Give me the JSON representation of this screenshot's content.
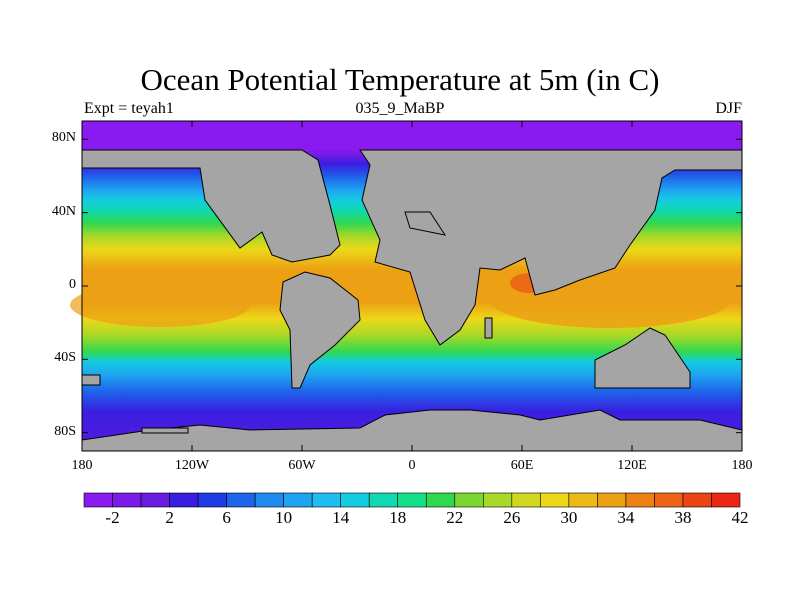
{
  "title": "Ocean Potential Temperature at 5m (in C)",
  "subtitle_left": "Expt = teyah1",
  "subtitle_center": "035_9_MaBP",
  "subtitle_right": "DJF",
  "lat_labels": [
    "80N",
    "40N",
    "0",
    "40S",
    "80S"
  ],
  "lat_values": [
    80,
    40,
    0,
    -40,
    -80
  ],
  "lon_labels": [
    "180",
    "120W",
    "60W",
    "0",
    "60E",
    "120E",
    "180"
  ],
  "lon_values": [
    -180,
    -120,
    -60,
    0,
    60,
    120,
    180
  ],
  "colorbar": {
    "labels": [
      "-2",
      "2",
      "6",
      "10",
      "14",
      "18",
      "22",
      "26",
      "30",
      "34",
      "38",
      "42"
    ],
    "colors": [
      "#8a1bf0",
      "#7a1be8",
      "#6a1be0",
      "#3a1ee0",
      "#1e3ce6",
      "#1e64ea",
      "#1e8cee",
      "#1ea4f0",
      "#1ebcf0",
      "#14cce0",
      "#10d8b0",
      "#14e08a",
      "#30d850",
      "#7ad830",
      "#a8d828",
      "#d2d820",
      "#ecd818",
      "#ecba14",
      "#eca014",
      "#ec8214",
      "#ec6414",
      "#ec4414",
      "#ec2414"
    ]
  },
  "land_color": "#a5a5a5"
}
